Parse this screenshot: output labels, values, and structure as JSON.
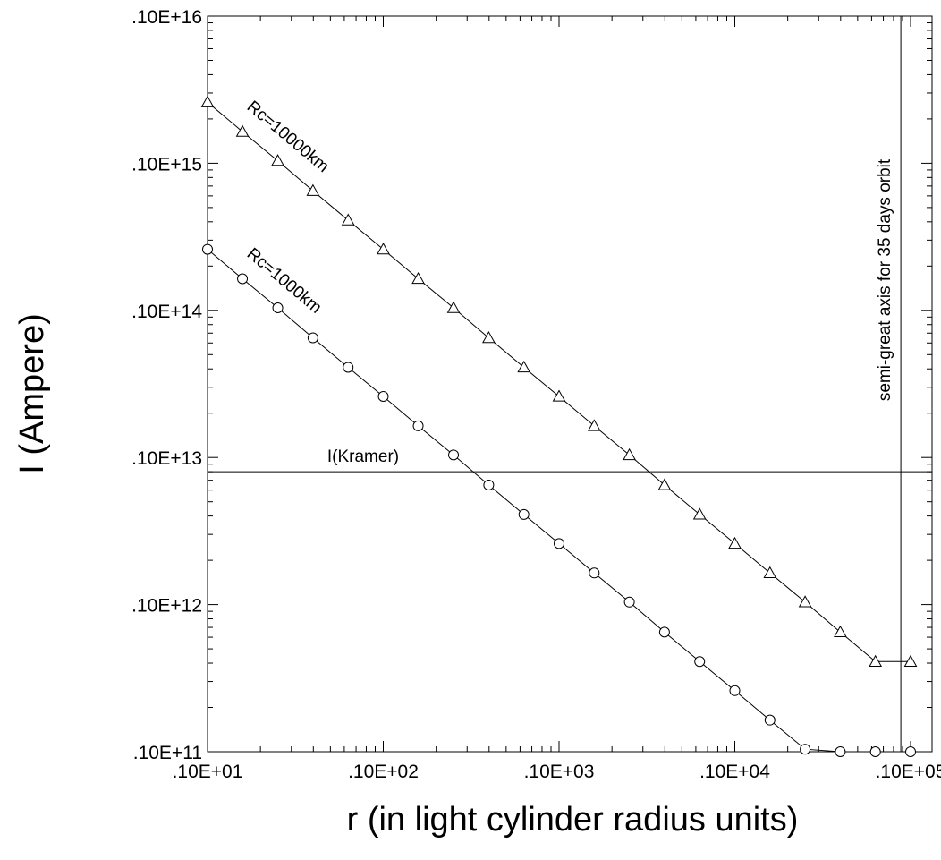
{
  "chart_data": {
    "type": "line",
    "x_scale": "log",
    "y_scale": "log",
    "xlabel": "r (in light cylinder radius units)",
    "ylabel": "I (Ampere)",
    "xlim": [
      10,
      200000
    ],
    "ylim": [
      100000000000.0,
      1e+16
    ],
    "grid": false,
    "x_ticks": [
      {
        "value": 10,
        "label": ".10E+01"
      },
      {
        "value": 100,
        "label": ".10E+02"
      },
      {
        "value": 1000,
        "label": ".10E+03"
      },
      {
        "value": 10000,
        "label": ".10E+04"
      },
      {
        "value": 100000,
        "label": ".10E+05"
      }
    ],
    "y_ticks": [
      {
        "value": 100000000000.0,
        "label": ".10E+11"
      },
      {
        "value": 1000000000000.0,
        "label": ".10E+12"
      },
      {
        "value": 10000000000000.0,
        "label": ".10E+13"
      },
      {
        "value": 100000000000000.0,
        "label": ".10E+14"
      },
      {
        "value": 1000000000000000.0,
        "label": ".10E+15"
      },
      {
        "value": 1e+16,
        "label": ".10E+16"
      }
    ],
    "series": [
      {
        "name": "Rc=10000km",
        "marker": "triangle",
        "x": [
          10,
          15.8,
          25.1,
          39.8,
          63.1,
          100,
          158,
          251,
          398,
          631,
          1000,
          1585,
          2512,
          3981,
          6310,
          10000,
          15849,
          25119,
          39811,
          63096,
          100000
        ],
        "y": [
          2600000000000000.0,
          1640000000000000.0,
          1040000000000000.0,
          650000000000000.0,
          410000000000000.0,
          260000000000000.0,
          164000000000000.0,
          104000000000000.0,
          65000000000000.0,
          41000000000000.0,
          26000000000000.0,
          16400000000000.0,
          10400000000000.0,
          6500000000000.0,
          4100000000000.0,
          2600000000000.0,
          1640000000000.0,
          1040000000000.0,
          650000000000.0,
          410000000000.0,
          410000000000.0
        ]
      },
      {
        "name": "Rc=1000km",
        "marker": "circle",
        "x": [
          10,
          15.8,
          25.1,
          39.8,
          63.1,
          100,
          158,
          251,
          398,
          631,
          1000,
          1585,
          2512,
          3981,
          6310,
          10000,
          15849,
          25119,
          39811,
          63096,
          100000
        ],
        "y": [
          260000000000000.0,
          164000000000000.0,
          104000000000000.0,
          65000000000000.0,
          41000000000000.0,
          26000000000000.0,
          16400000000000.0,
          10400000000000.0,
          6500000000000.0,
          4100000000000.0,
          2600000000000.0,
          1640000000000.0,
          1040000000000.0,
          650000000000.0,
          410000000000.0,
          260000000000.0,
          164000000000.0,
          104000000000.0,
          100000000000.0,
          100000000000.0,
          100000000000.0
        ]
      }
    ],
    "reference_lines": [
      {
        "orientation": "horizontal",
        "value": 8000000000000.0,
        "label": "I(Kramer)"
      },
      {
        "orientation": "vertical",
        "value": 88000.0,
        "label": "semi-great axis for 35 days orbit"
      }
    ]
  }
}
